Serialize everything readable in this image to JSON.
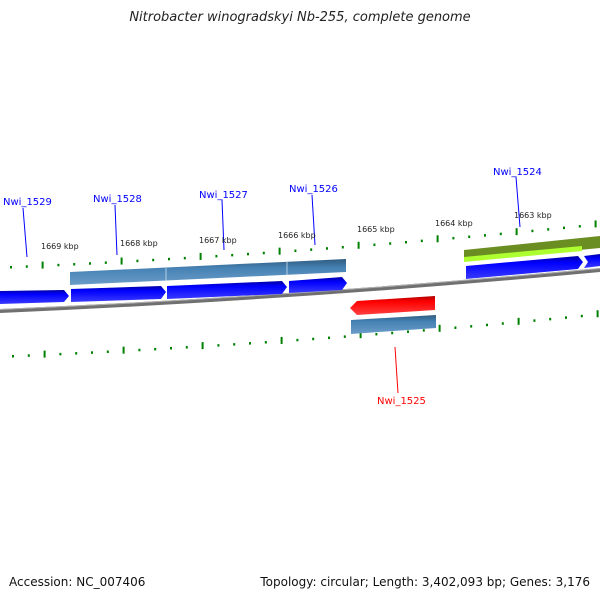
{
  "title": "Nitrobacter winogradskyi Nb-255, complete genome",
  "footer": {
    "accession": "Accession: NC_007406",
    "summary": "Topology: circular; Length: 3,402,093 bp; Genes: 3,176"
  },
  "colors": {
    "forward_gene": "#0000ff",
    "reverse_gene": "#ff0000",
    "cds": "#4682b4",
    "olive": "#6b8e23",
    "lime": "#adff2f",
    "ticks": "#008000",
    "backbone": "#808080"
  },
  "kbp_labels": [
    "1669 kbp",
    "1668 kbp",
    "1667 kbp",
    "1666 kbp",
    "1665 kbp",
    "1664 kbp",
    "1663 kbp"
  ],
  "genes": {
    "g1529": "Nwi_1529",
    "g1528": "Nwi_1528",
    "g1527": "Nwi_1527",
    "g1526": "Nwi_1526",
    "g1525": "Nwi_1525",
    "g1524": "Nwi_1524"
  }
}
